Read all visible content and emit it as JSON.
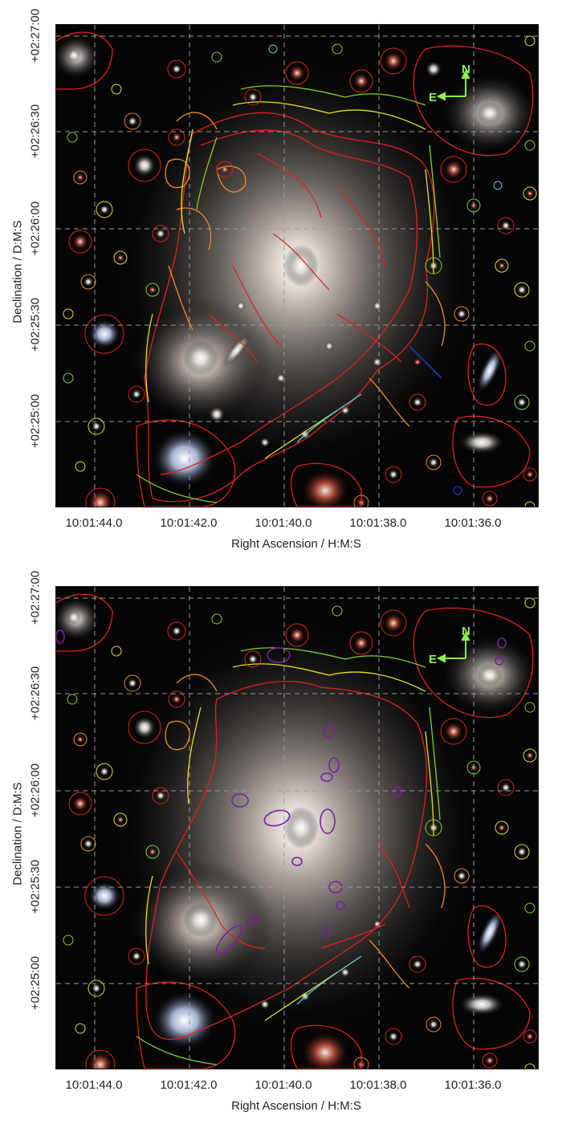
{
  "panels": [
    {
      "name": "top",
      "x_axis_label": "Right Ascension / H:M:S",
      "y_axis_label": "Declination / D:M:S",
      "x_ticks": [
        "10:01:44.0",
        "10:01:42.0",
        "10:01:40.0",
        "10:01:38.0",
        "10:01:36.0"
      ],
      "y_ticks": [
        "+02:27:00",
        "+02:26:30",
        "+02:26:00",
        "+02:25:30",
        "+02:25:00"
      ],
      "compass": {
        "north": "N",
        "east": "E"
      }
    },
    {
      "name": "bottom",
      "x_axis_label": "Right Ascension / H:M:S",
      "y_axis_label": "Declination / D:M:S",
      "x_ticks": [
        "10:01:44.0",
        "10:01:42.0",
        "10:01:40.0",
        "10:01:38.0",
        "10:01:36.0"
      ],
      "y_ticks": [
        "+02:27:00",
        "+02:26:30",
        "+02:26:00",
        "+02:25:30",
        "+02:25:00"
      ],
      "compass": {
        "north": "N",
        "east": "E"
      }
    }
  ],
  "colors": {
    "background_sky": "#050505",
    "grid": "#9a9a9a",
    "mask_outer": "#e02020",
    "mask_mid": "#f08a20",
    "mask_yellow": "#e6e020",
    "mask_green": "#7ed321",
    "mask_cyan": "#5ad0e0",
    "mask_blue": "#2040e0",
    "mask_purple": "#7a1fa0",
    "compass": "#8cf04a"
  }
}
